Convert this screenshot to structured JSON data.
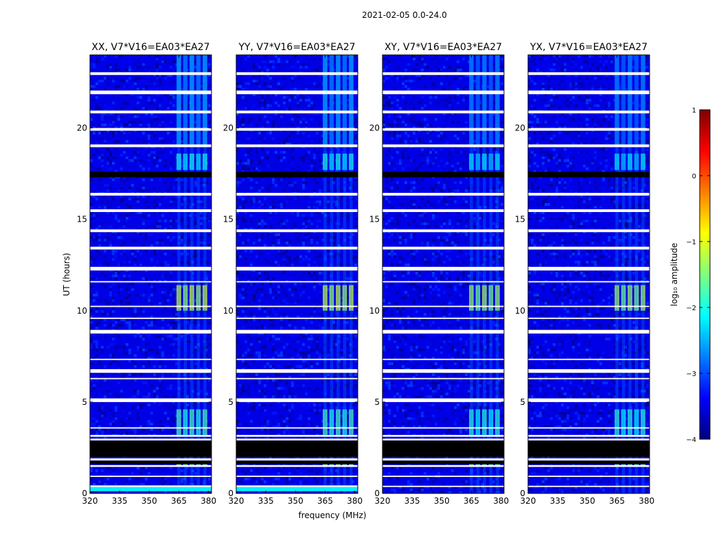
{
  "chart_data": {
    "type": "heatmap",
    "suptitle": "2021-02-05 0.0-24.0",
    "xlabel": "frequency (MHz)",
    "ylabel": "UT (hours)",
    "xlim": [
      320,
      381.5
    ],
    "ylim": [
      0,
      24
    ],
    "xticks": [
      320,
      335,
      350,
      365,
      380
    ],
    "yticks": [
      0,
      5,
      10,
      15,
      20
    ],
    "colorbar": {
      "label": "log₁₀ amplitude",
      "range": [
        -4,
        1
      ],
      "ticks": [
        1,
        0,
        -1,
        -2,
        -3,
        -4
      ],
      "tick_labels": [
        "1",
        "0",
        "−1",
        "−2",
        "−3",
        "−4"
      ],
      "colormap": [
        "#00007f",
        "#0000ff",
        "#007fff",
        "#00ffff",
        "#7fff7f",
        "#ffff00",
        "#ff7f00",
        "#ff0000",
        "#7f0000"
      ]
    },
    "panels": [
      {
        "title": "XX, V7*V16=EA03*EA27",
        "polarization": "XX"
      },
      {
        "title": "YY, V7*V16=EA03*EA27",
        "polarization": "YY"
      },
      {
        "title": "XY, V7*V16=EA03*EA27",
        "polarization": "XY"
      },
      {
        "title": "YX, V7*V16=EA03*EA27",
        "polarization": "YX"
      }
    ],
    "background_level": -3.5,
    "rfi_band_mhz": [
      363.5,
      380
    ],
    "rfi_events": [
      {
        "t_start": 10.0,
        "t_end": 11.4,
        "level": -1.0
      },
      {
        "t_start": 3.2,
        "t_end": 4.6,
        "level": -1.7
      },
      {
        "t_start": 17.7,
        "t_end": 18.6,
        "level": -2.0
      },
      {
        "t_start": 1.5,
        "t_end": 1.7,
        "level": -1.0
      },
      {
        "t_start": 19.0,
        "t_end": 24.0,
        "level": -2.6
      }
    ],
    "flagged_intervals_hours": [
      [
        22.9,
        23.05
      ],
      [
        21.85,
        22.05
      ],
      [
        20.8,
        20.95
      ],
      [
        19.85,
        20.0
      ],
      [
        18.95,
        19.1
      ],
      [
        16.3,
        16.45
      ],
      [
        15.4,
        15.55
      ],
      [
        14.3,
        14.45
      ],
      [
        13.35,
        13.5
      ],
      [
        12.2,
        12.4
      ],
      [
        11.55,
        11.62
      ],
      [
        10.2,
        10.27
      ],
      [
        9.55,
        9.62
      ],
      [
        8.75,
        8.95
      ],
      [
        7.3,
        7.37
      ],
      [
        6.6,
        6.8
      ],
      [
        6.25,
        6.32
      ],
      [
        5.0,
        5.2
      ],
      [
        3.55,
        3.62
      ],
      [
        3.1,
        3.2
      ],
      [
        2.9,
        3.0
      ],
      [
        1.8,
        1.92
      ],
      [
        1.45,
        1.55
      ],
      [
        0.9,
        0.97
      ],
      [
        0.35,
        0.42
      ]
    ],
    "no_data_intervals_hours": [
      [
        2.0,
        2.9
      ],
      [
        1.6,
        1.8
      ],
      [
        17.3,
        17.6
      ]
    ]
  }
}
